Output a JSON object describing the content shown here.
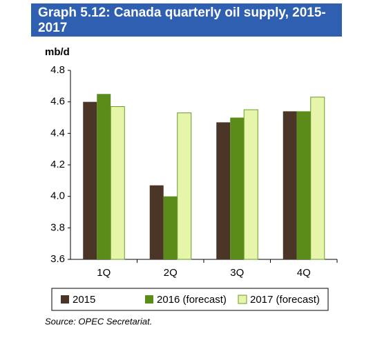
{
  "chart_data": {
    "type": "bar",
    "title": "Graph 5.12: Canada quarterly oil supply, 2015-2017",
    "y_label": "mb/d",
    "source": "Source: OPEC Secretariat.",
    "categories": [
      "1Q",
      "2Q",
      "3Q",
      "4Q"
    ],
    "series": [
      {
        "name": "2015",
        "color": "#4a3526",
        "values": [
          4.6,
          4.07,
          4.47,
          4.54
        ]
      },
      {
        "name": "2016 (forecast)",
        "color": "#5b8c1a",
        "values": [
          4.65,
          4.0,
          4.5,
          4.54
        ]
      },
      {
        "name": "2017 (forecast)",
        "color": "#e6f5aa",
        "values": [
          4.57,
          4.53,
          4.55,
          4.63
        ]
      }
    ],
    "ylim": [
      3.6,
      4.8
    ],
    "yticks": [
      3.6,
      3.8,
      {
        "value": 4,
        "label": "4.0"
      },
      4.2,
      4.4,
      4.6,
      4.8
    ],
    "grid": false
  }
}
